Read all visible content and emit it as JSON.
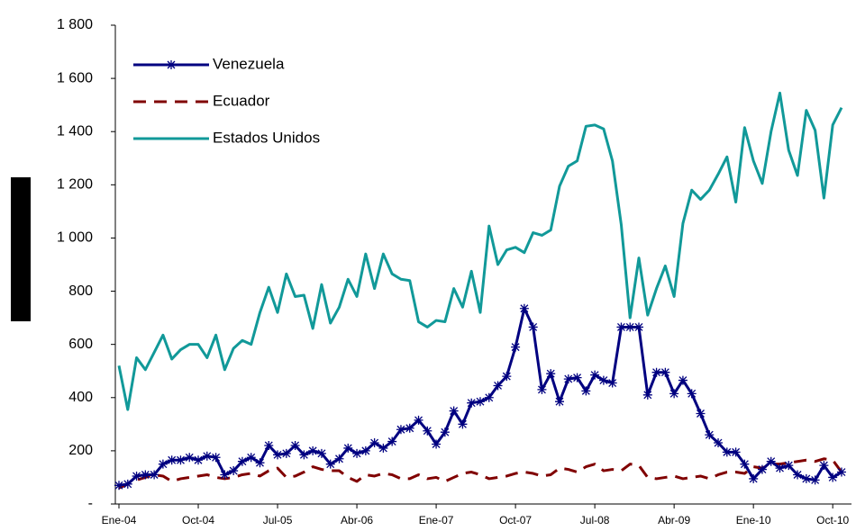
{
  "chart_data": {
    "type": "line",
    "categories": [
      "Ene-04",
      null,
      null,
      null,
      null,
      null,
      null,
      null,
      null,
      "Oct-04",
      null,
      null,
      null,
      null,
      null,
      null,
      null,
      null,
      "Jul-05",
      null,
      null,
      null,
      null,
      null,
      null,
      null,
      null,
      "Abr-06",
      null,
      null,
      null,
      null,
      null,
      null,
      null,
      null,
      "Ene-07",
      null,
      null,
      null,
      null,
      null,
      null,
      null,
      null,
      "Oct-07",
      null,
      null,
      null,
      null,
      null,
      null,
      null,
      null,
      "Jul-08",
      null,
      null,
      null,
      null,
      null,
      null,
      null,
      null,
      "Abr-09",
      null,
      null,
      null,
      null,
      null,
      null,
      null,
      null,
      "Ene-10",
      null,
      null,
      null,
      null,
      null,
      null,
      null,
      null,
      "Oct-10",
      null
    ],
    "series": [
      {
        "name": "Venezuela",
        "color": "#000080",
        "marker": "asterisk",
        "values": [
          70,
          75,
          105,
          110,
          110,
          150,
          165,
          165,
          175,
          165,
          180,
          175,
          110,
          125,
          160,
          175,
          155,
          220,
          185,
          190,
          220,
          185,
          200,
          190,
          150,
          170,
          210,
          190,
          200,
          230,
          210,
          235,
          280,
          285,
          315,
          275,
          225,
          270,
          350,
          300,
          380,
          385,
          400,
          445,
          480,
          590,
          735,
          665,
          430,
          490,
          385,
          470,
          475,
          425,
          485,
          465,
          455,
          665,
          665,
          665,
          410,
          495,
          495,
          415,
          465,
          415,
          340,
          260,
          230,
          195,
          195,
          150,
          95,
          130,
          160,
          135,
          145,
          110,
          95,
          90,
          145,
          100,
          120
        ]
      },
      {
        "name": "Ecuador",
        "color": "#800000",
        "dashed": true,
        "values": [
          60,
          75,
          90,
          100,
          110,
          105,
          85,
          95,
          100,
          105,
          110,
          100,
          95,
          100,
          110,
          115,
          105,
          125,
          135,
          100,
          105,
          120,
          140,
          130,
          125,
          125,
          100,
          85,
          110,
          105,
          115,
          110,
          95,
          95,
          110,
          95,
          100,
          85,
          100,
          115,
          120,
          110,
          95,
          100,
          105,
          115,
          120,
          115,
          105,
          110,
          135,
          130,
          120,
          140,
          150,
          125,
          130,
          125,
          150,
          145,
          100,
          95,
          100,
          105,
          95,
          100,
          105,
          95,
          110,
          120,
          120,
          115,
          140,
          135,
          150,
          150,
          155,
          160,
          165,
          160,
          170,
          165,
          120
        ]
      },
      {
        "name": "Estados Unidos",
        "color": "#119999",
        "values": [
          520,
          355,
          550,
          505,
          570,
          635,
          545,
          580,
          600,
          600,
          550,
          635,
          505,
          585,
          615,
          600,
          720,
          815,
          720,
          865,
          780,
          785,
          660,
          825,
          680,
          740,
          845,
          780,
          940,
          810,
          940,
          865,
          845,
          840,
          685,
          665,
          690,
          685,
          810,
          740,
          875,
          720,
          1045,
          900,
          955,
          965,
          945,
          1020,
          1010,
          1030,
          1195,
          1270,
          1290,
          1420,
          1425,
          1410,
          1290,
          1050,
          700,
          925,
          710,
          810,
          895,
          780,
          1055,
          1180,
          1145,
          1180,
          1240,
          1305,
          1135,
          1415,
          1290,
          1205,
          1400,
          1545,
          1330,
          1235,
          1480,
          1405,
          1150,
          1425,
          1490
        ]
      }
    ],
    "ylim": [
      0,
      1800
    ],
    "yticks": [
      {
        "value": 0,
        "label": "-"
      },
      200,
      400,
      600,
      800,
      1000,
      1200,
      1400,
      1600,
      {
        "value": 1800,
        "label": "1 800"
      }
    ],
    "legend": "upper left"
  }
}
